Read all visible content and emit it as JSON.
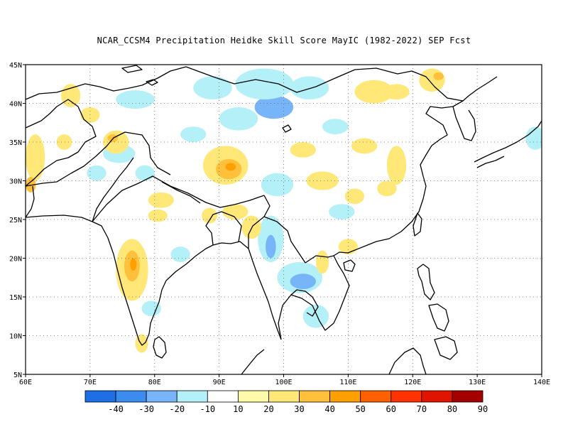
{
  "title": "NCAR_CCSM4  Precipitation Heidke Skill Score MayIC (1982-2022) SEP Fcst",
  "map": {
    "lon_range": [
      60,
      140
    ],
    "lat_range": [
      5,
      45
    ],
    "x_ticks": [
      "60E",
      "70E",
      "80E",
      "90E",
      "100E",
      "110E",
      "120E",
      "130E",
      "140E"
    ],
    "y_ticks": [
      "5N",
      "10N",
      "15N",
      "20N",
      "25N",
      "30N",
      "35N",
      "40N",
      "45N"
    ],
    "grid": "dotted"
  },
  "colorbar": {
    "colors": [
      "#1e6ee6",
      "#3c8cf0",
      "#78b4f8",
      "#b4f0f8",
      "#ffffff",
      "#fffaaa",
      "#ffe878",
      "#ffc03c",
      "#ffa000",
      "#ff6000",
      "#ff3200",
      "#e11400",
      "#a50000"
    ],
    "labels": [
      "-40",
      "-30",
      "-20",
      "-10",
      "10",
      "20",
      "30",
      "40",
      "50",
      "60",
      "70",
      "80",
      "90"
    ]
  },
  "skill_patches": [
    {
      "lon": 98.5,
      "lat": 39.5,
      "rx": 3.0,
      "ry": 1.5,
      "level": "-20"
    },
    {
      "lon": 97.0,
      "lat": 42.5,
      "rx": 4.5,
      "ry": 2.0,
      "level": "-10"
    },
    {
      "lon": 104.0,
      "lat": 42.0,
      "rx": 3.0,
      "ry": 1.5,
      "level": "-10"
    },
    {
      "lon": 93.0,
      "lat": 38.0,
      "rx": 3.0,
      "ry": 1.5,
      "level": "-10"
    },
    {
      "lon": 89.0,
      "lat": 42.0,
      "rx": 3.0,
      "ry": 1.5,
      "level": "-10"
    },
    {
      "lon": 77.0,
      "lat": 40.5,
      "rx": 3.0,
      "ry": 1.2,
      "level": "-10"
    },
    {
      "lon": 86.0,
      "lat": 36.0,
      "rx": 2.0,
      "ry": 1.0,
      "level": "-10"
    },
    {
      "lon": 108.0,
      "lat": 37.0,
      "rx": 2.0,
      "ry": 1.0,
      "level": "-10"
    },
    {
      "lon": 99.0,
      "lat": 29.5,
      "rx": 2.5,
      "ry": 1.5,
      "level": "-10"
    },
    {
      "lon": 109.0,
      "lat": 26.0,
      "rx": 2.0,
      "ry": 1.0,
      "level": "-10"
    },
    {
      "lon": 98.0,
      "lat": 22.5,
      "rx": 2.0,
      "ry": 3.0,
      "level": "-10"
    },
    {
      "lon": 98.0,
      "lat": 21.5,
      "rx": 0.8,
      "ry": 1.5,
      "level": "-20"
    },
    {
      "lon": 102.5,
      "lat": 17.5,
      "rx": 3.5,
      "ry": 2.0,
      "level": "-10"
    },
    {
      "lon": 103.0,
      "lat": 17.0,
      "rx": 2.0,
      "ry": 1.0,
      "level": "-20"
    },
    {
      "lon": 105.0,
      "lat": 12.5,
      "rx": 2.0,
      "ry": 1.5,
      "level": "-10"
    },
    {
      "lon": 74.5,
      "lat": 33.5,
      "rx": 2.5,
      "ry": 1.2,
      "level": "-10"
    },
    {
      "lon": 71.0,
      "lat": 31.0,
      "rx": 1.5,
      "ry": 1.0,
      "level": "-10"
    },
    {
      "lon": 78.5,
      "lat": 31.0,
      "rx": 1.5,
      "ry": 1.0,
      "level": "-10"
    },
    {
      "lon": 79.5,
      "lat": 13.5,
      "rx": 1.5,
      "ry": 1.0,
      "level": "-10"
    },
    {
      "lon": 84.0,
      "lat": 20.5,
      "rx": 1.5,
      "ry": 1.0,
      "level": "-10"
    },
    {
      "lon": 139.0,
      "lat": 35.5,
      "rx": 1.5,
      "ry": 1.5,
      "level": "-10"
    },
    {
      "lon": 91.0,
      "lat": 32.0,
      "rx": 3.5,
      "ry": 2.5,
      "level": "20"
    },
    {
      "lon": 91.5,
      "lat": 31.5,
      "rx": 2.0,
      "ry": 1.3,
      "level": "30"
    },
    {
      "lon": 91.8,
      "lat": 31.8,
      "rx": 0.8,
      "ry": 0.5,
      "level": "40"
    },
    {
      "lon": 76.5,
      "lat": 18.5,
      "rx": 2.5,
      "ry": 4.0,
      "level": "20"
    },
    {
      "lon": 76.5,
      "lat": 19.0,
      "rx": 1.2,
      "ry": 2.0,
      "level": "30"
    },
    {
      "lon": 76.7,
      "lat": 19.2,
      "rx": 0.5,
      "ry": 0.8,
      "level": "40"
    },
    {
      "lon": 74.0,
      "lat": 35.0,
      "rx": 2.0,
      "ry": 1.5,
      "level": "20"
    },
    {
      "lon": 73.5,
      "lat": 35.5,
      "rx": 0.8,
      "ry": 0.5,
      "level": "30"
    },
    {
      "lon": 61.5,
      "lat": 33.0,
      "rx": 1.5,
      "ry": 3.0,
      "level": "20"
    },
    {
      "lon": 67.0,
      "lat": 41.0,
      "rx": 1.5,
      "ry": 1.5,
      "level": "20"
    },
    {
      "lon": 70.0,
      "lat": 38.5,
      "rx": 1.5,
      "ry": 1.0,
      "level": "20"
    },
    {
      "lon": 66.0,
      "lat": 35.0,
      "rx": 1.2,
      "ry": 1.0,
      "level": "20"
    },
    {
      "lon": 114.0,
      "lat": 41.5,
      "rx": 3.0,
      "ry": 1.5,
      "level": "20"
    },
    {
      "lon": 117.5,
      "lat": 41.5,
      "rx": 2.0,
      "ry": 1.0,
      "level": "20"
    },
    {
      "lon": 123.0,
      "lat": 43.0,
      "rx": 2.0,
      "ry": 1.5,
      "level": "20"
    },
    {
      "lon": 124.0,
      "lat": 43.5,
      "rx": 0.8,
      "ry": 0.5,
      "level": "30"
    },
    {
      "lon": 112.5,
      "lat": 34.5,
      "rx": 2.0,
      "ry": 1.0,
      "level": "20"
    },
    {
      "lon": 103.0,
      "lat": 34.0,
      "rx": 2.0,
      "ry": 1.0,
      "level": "20"
    },
    {
      "lon": 117.5,
      "lat": 32.0,
      "rx": 1.5,
      "ry": 2.5,
      "level": "20"
    },
    {
      "lon": 106.0,
      "lat": 30.0,
      "rx": 2.5,
      "ry": 1.2,
      "level": "20"
    },
    {
      "lon": 111.0,
      "lat": 28.0,
      "rx": 1.5,
      "ry": 1.0,
      "level": "20"
    },
    {
      "lon": 116.0,
      "lat": 29.0,
      "rx": 1.5,
      "ry": 1.0,
      "level": "20"
    },
    {
      "lon": 92.5,
      "lat": 26.0,
      "rx": 2.0,
      "ry": 1.0,
      "level": "20"
    },
    {
      "lon": 95.0,
      "lat": 24.0,
      "rx": 1.5,
      "ry": 1.5,
      "level": "20"
    },
    {
      "lon": 88.5,
      "lat": 25.5,
      "rx": 1.2,
      "ry": 1.0,
      "level": "20"
    },
    {
      "lon": 81.0,
      "lat": 27.5,
      "rx": 2.0,
      "ry": 1.0,
      "level": "20"
    },
    {
      "lon": 80.5,
      "lat": 25.5,
      "rx": 1.5,
      "ry": 0.8,
      "level": "20"
    },
    {
      "lon": 110.0,
      "lat": 21.5,
      "rx": 1.5,
      "ry": 1.0,
      "level": "20"
    },
    {
      "lon": 106.0,
      "lat": 19.5,
      "rx": 1.0,
      "ry": 1.5,
      "level": "20"
    },
    {
      "lon": 78.0,
      "lat": 9.0,
      "rx": 1.0,
      "ry": 1.2,
      "level": "20"
    },
    {
      "lon": 60.8,
      "lat": 29.5,
      "rx": 0.8,
      "ry": 1.0,
      "level": "30"
    }
  ]
}
